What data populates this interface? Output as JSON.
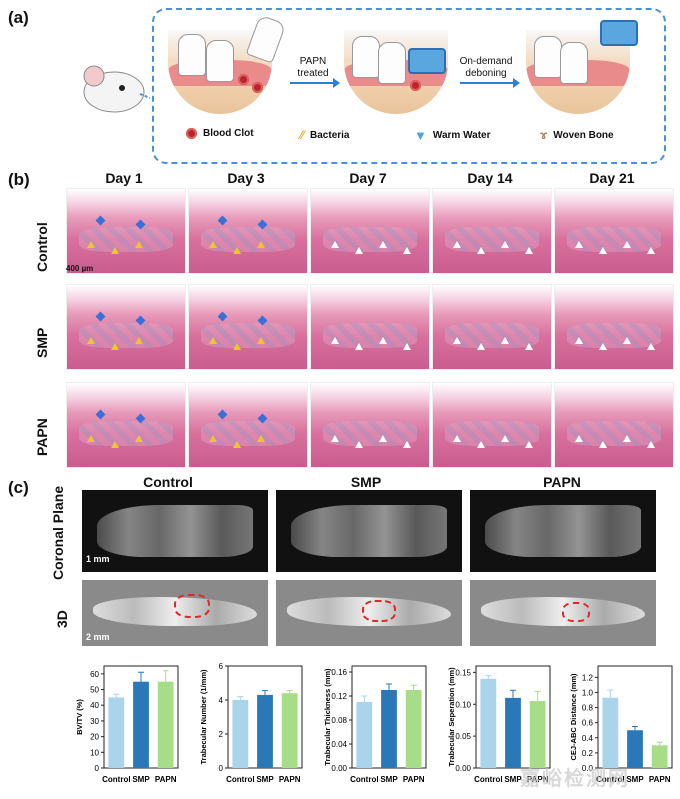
{
  "panel_a": {
    "label": "(a)",
    "arrow1": [
      "PAPN",
      "treated"
    ],
    "arrow2": [
      "On-demand",
      "deboning"
    ],
    "legend": [
      {
        "icon": "blood-clot-icon",
        "label": "Blood Clot"
      },
      {
        "icon": "bacteria-icon",
        "label": "Bacteria"
      },
      {
        "icon": "warm-water-icon",
        "label": "Warm Water"
      },
      {
        "icon": "woven-bone-icon",
        "label": "Woven Bone"
      }
    ]
  },
  "panel_b": {
    "label": "(b)",
    "days": [
      "Day 1",
      "Day 3",
      "Day 7",
      "Day 14",
      "Day 21"
    ],
    "rows": [
      "Control",
      "SMP",
      "PAPN"
    ],
    "scale_bar": "400 µm"
  },
  "panel_c": {
    "label": "(c)",
    "groups": [
      "Control",
      "SMP",
      "PAPN"
    ],
    "row_labels": [
      "Coronal Plane",
      "3D"
    ],
    "scale_coronal": "1 mm",
    "scale_3d": "2 mm"
  },
  "colors": {
    "control": "#a9d4ea",
    "smp": "#2a78b8",
    "papn": "#a7dc88",
    "accent": "#4a90d9"
  },
  "watermark": "嘉峪检测网",
  "chart_data": [
    {
      "type": "bar",
      "categories": [
        "Control",
        "SMP",
        "PAPN"
      ],
      "values": [
        45,
        55,
        55
      ],
      "errors": [
        2,
        6,
        7
      ],
      "ylabel": "BV/TV (%)",
      "ylim": [
        0,
        65
      ],
      "yticks": [
        0,
        10,
        20,
        30,
        40,
        50,
        60
      ]
    },
    {
      "type": "bar",
      "categories": [
        "Control",
        "SMP",
        "PAPN"
      ],
      "values": [
        4.0,
        4.3,
        4.4
      ],
      "errors": [
        0.2,
        0.25,
        0.15
      ],
      "ylabel": "Trabecular Number (1/mm)",
      "ylim": [
        0,
        6
      ],
      "yticks": [
        0,
        2,
        4,
        6
      ]
    },
    {
      "type": "bar",
      "categories": [
        "Control",
        "SMP",
        "PAPN"
      ],
      "values": [
        0.11,
        0.13,
        0.13
      ],
      "errors": [
        0.01,
        0.01,
        0.008
      ],
      "ylabel": "Trabecular Thickness (mm)",
      "ylim": [
        0,
        0.17
      ],
      "yticks": [
        0.0,
        0.04,
        0.08,
        0.12,
        0.16
      ]
    },
    {
      "type": "bar",
      "categories": [
        "Control",
        "SMP",
        "PAPN"
      ],
      "values": [
        0.14,
        0.11,
        0.105
      ],
      "errors": [
        0.005,
        0.012,
        0.015
      ],
      "ylabel": "Trabecular Seperation (mm)",
      "ylim": [
        0,
        0.16
      ],
      "yticks": [
        0.0,
        0.05,
        0.1,
        0.15
      ]
    },
    {
      "type": "bar",
      "categories": [
        "Control",
        "SMP",
        "PAPN"
      ],
      "values": [
        0.93,
        0.5,
        0.3
      ],
      "errors": [
        0.1,
        0.05,
        0.04
      ],
      "ylabel": "CEJ-ABC Distance (mm)",
      "ylim": [
        0,
        1.35
      ],
      "yticks": [
        0.0,
        0.2,
        0.4,
        0.6,
        0.8,
        1.0,
        1.2
      ]
    }
  ]
}
